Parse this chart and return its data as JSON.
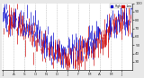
{
  "background_color": "#e8e8e8",
  "plot_bg": "#ffffff",
  "ylim": [
    20,
    100
  ],
  "num_days": 365,
  "seed": 17,
  "blue_color": "#0000cc",
  "red_color": "#cc0000",
  "grid_color": "#aaaaaa",
  "tick_color": "#333333",
  "tick_fontsize": 3.0,
  "yticks": [
    30,
    40,
    50,
    60,
    70,
    80,
    90,
    100
  ],
  "ytick_labels": [
    "30",
    "40",
    "50",
    "60",
    "70",
    "80",
    "90",
    "100"
  ],
  "month_positions": [
    0,
    30,
    61,
    91,
    122,
    152,
    183,
    213,
    244,
    274,
    305,
    335
  ],
  "month_labels": [
    "J",
    "A",
    "S",
    "O",
    "N",
    "D",
    "J",
    "F",
    "M",
    "A",
    "M",
    "J"
  ]
}
